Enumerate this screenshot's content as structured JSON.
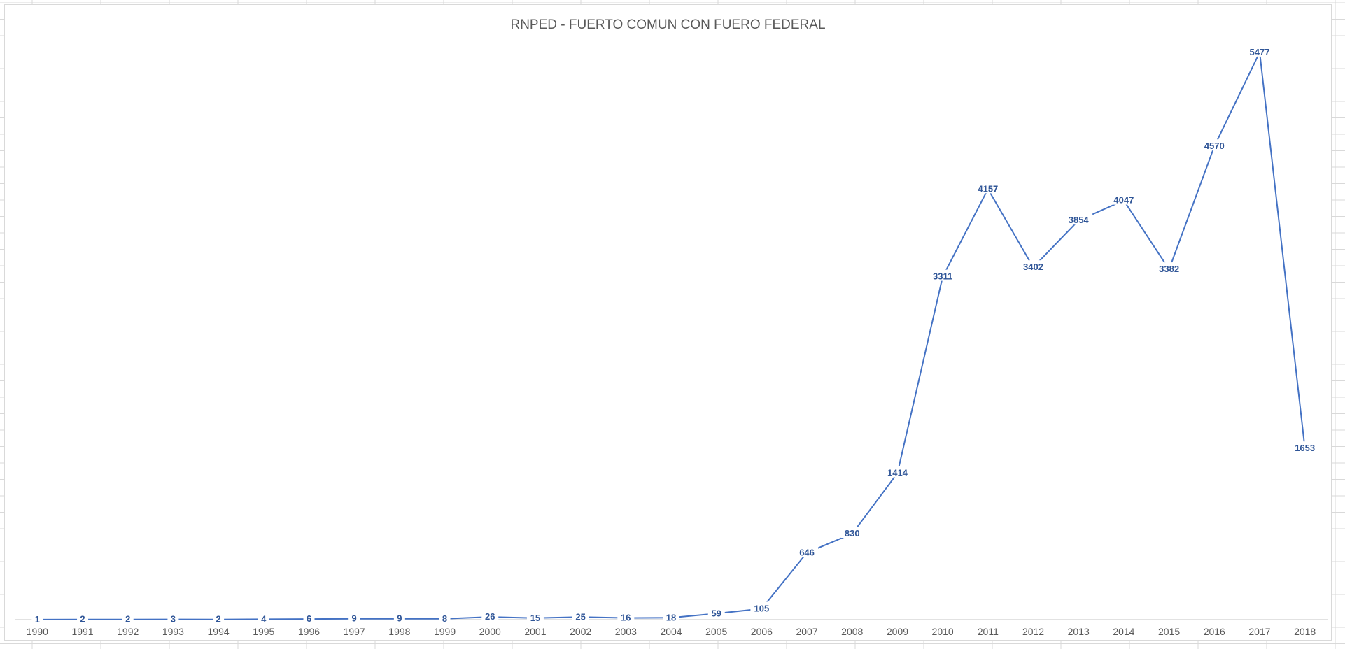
{
  "chart_data": {
    "type": "line",
    "title": "RNPED - FUERTO COMUN CON FUERO FEDERAL",
    "xlabel": "",
    "ylabel": "",
    "categories": [
      "1990",
      "1991",
      "1992",
      "1993",
      "1994",
      "1995",
      "1996",
      "1997",
      "1998",
      "1999",
      "2000",
      "2001",
      "2002",
      "2003",
      "2004",
      "2005",
      "2006",
      "2007",
      "2008",
      "2009",
      "2010",
      "2011",
      "2012",
      "2013",
      "2014",
      "2015",
      "2016",
      "2017",
      "2018"
    ],
    "series": [
      {
        "values": [
          1,
          2,
          2,
          3,
          2,
          4,
          6,
          9,
          9,
          8,
          26,
          15,
          25,
          16,
          18,
          59,
          105,
          646,
          830,
          1414,
          3311,
          4157,
          3402,
          3854,
          4047,
          3382,
          4570,
          5477,
          1653
        ],
        "color": "#4472c4",
        "label_color": "#2f5597"
      }
    ],
    "ylim": [
      0,
      5800
    ],
    "grid": false,
    "legend": "none",
    "data_labels": true,
    "sheet_grid_color": "#d9d9d9",
    "axis_color": "#d9d9d9",
    "tick_label_color": "#595959"
  }
}
